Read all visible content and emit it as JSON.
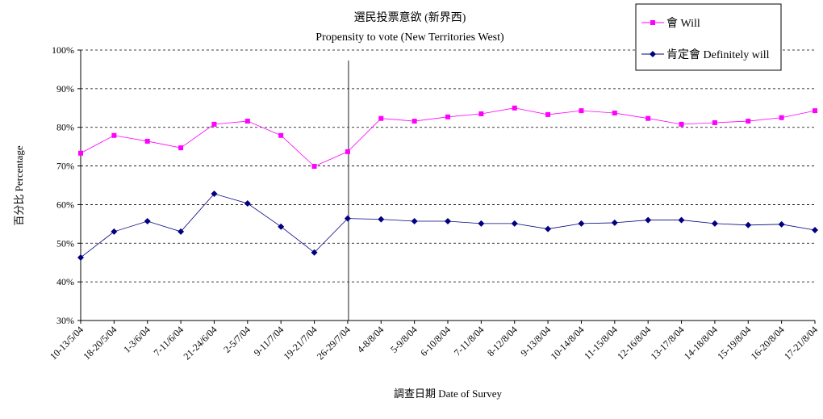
{
  "chart_data": {
    "type": "line",
    "title": "選民投票意欲 (新界西)",
    "subtitle": "Propensity to vote (New Territories West)",
    "xlabel": "調查日期 Date of Survey",
    "ylabel": "百分比 Percentage",
    "ylim": [
      30,
      100
    ],
    "yticks": [
      "30%",
      "40%",
      "50%",
      "60%",
      "70%",
      "80%",
      "90%",
      "100%"
    ],
    "grid": true,
    "legend_position": "top-right",
    "categories": [
      "10-13/5/04",
      "18-20/5/04",
      "1-3/6/04",
      "7-11/6/04",
      "21-24/6/04",
      "2-5/7/04",
      "9-11/7/04",
      "19-21/7/04",
      "26-29/7/04",
      "4-8/8/04",
      "5-9/8/04",
      "6-10/8/04",
      "7-11/8/04",
      "8-12/8/04",
      "9-13/8/04",
      "10-14/8/04",
      "11-15/8/04",
      "12-16/8/04",
      "13-17/8/04",
      "14-18/8/04",
      "15-19/8/04",
      "16-20/8/04",
      "17-21/8/04"
    ],
    "vertical_marker_after": "26-29/7/04",
    "series": [
      {
        "name": "會 Will",
        "color": "#ff00ff",
        "marker": "square",
        "values": [
          73.3,
          77.9,
          76.4,
          74.7,
          80.8,
          81.6,
          77.9,
          69.9,
          73.7,
          82.3,
          81.6,
          82.7,
          83.5,
          85.0,
          83.3,
          84.3,
          83.7,
          82.3,
          80.8,
          81.2,
          81.6,
          82.5,
          84.3
        ]
      },
      {
        "name": "肯定會 Definitely will",
        "color": "#000080",
        "marker": "diamond",
        "values": [
          46.3,
          53.0,
          55.7,
          53.0,
          62.8,
          60.3,
          54.3,
          47.6,
          56.4,
          56.2,
          55.7,
          55.7,
          55.1,
          55.1,
          53.7,
          55.1,
          55.3,
          56.0,
          56.0,
          55.1,
          54.7,
          54.9,
          53.4
        ]
      }
    ]
  }
}
